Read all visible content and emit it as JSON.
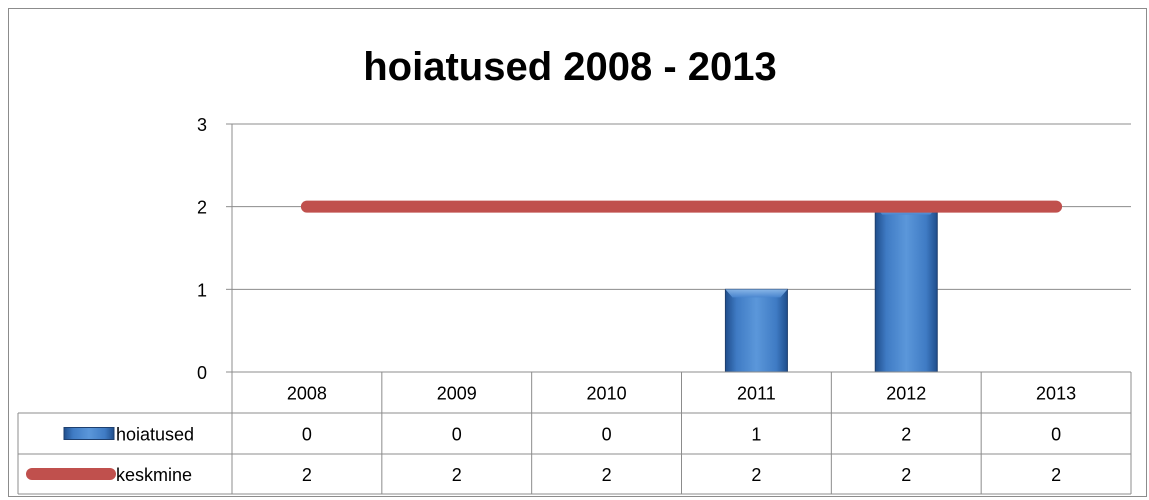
{
  "chart_data": {
    "type": "bar",
    "title": "hoiatused 2008 - 2013",
    "categories": [
      "2008",
      "2009",
      "2010",
      "2011",
      "2012",
      "2013"
    ],
    "series": [
      {
        "name": "hoiatused",
        "type": "bar",
        "values": [
          0,
          0,
          0,
          1,
          2,
          0
        ],
        "color": "#3f7bc4"
      },
      {
        "name": "keskmine",
        "type": "line",
        "values": [
          2,
          2,
          2,
          2,
          2,
          2
        ],
        "color": "#c0504d"
      }
    ],
    "yticks": [
      "0",
      "1",
      "2",
      "3"
    ],
    "ylim": [
      0,
      3
    ],
    "xlabel": "",
    "ylabel": "",
    "grid": true,
    "legend": "data-table"
  }
}
